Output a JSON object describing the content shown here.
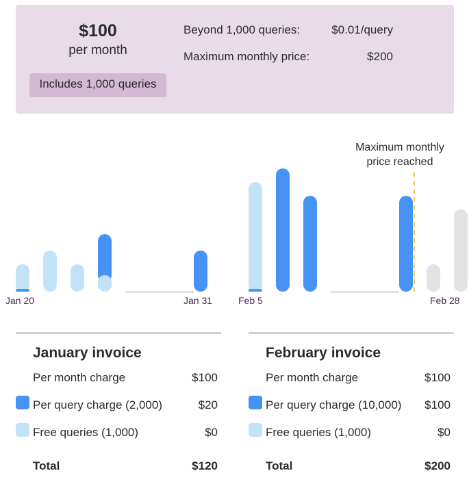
{
  "pricing": {
    "amount": "$100",
    "period": "per month",
    "includes": "Includes 1,000 queries",
    "rows": [
      {
        "label": "Beyond 1,000 queries:",
        "value": "$0.01/query"
      },
      {
        "label": "Maximum monthly price:",
        "value": "$200"
      }
    ]
  },
  "chart_data": {
    "type": "bar",
    "ticks": [
      "Jan 20",
      "Jan 31",
      "Feb 5",
      "Feb 28"
    ],
    "annotation": [
      "Maximum monthly",
      "price reached"
    ],
    "colors": {
      "paid": "#4793f5",
      "free": "#c2e3f7",
      "capped": "#e3e3e3",
      "marker": "#f2c94c",
      "baseline": "#e3e3e3"
    },
    "bars": [
      {
        "slot": 0,
        "free": 40,
        "paid": 4
      },
      {
        "slot": 2,
        "free": 60,
        "paid": 0
      },
      {
        "slot": 4,
        "free": 40,
        "paid": 0
      },
      {
        "slot": 6,
        "free": 24,
        "paid": 60
      },
      {
        "slot": 13,
        "free": 0,
        "paid": 60
      },
      {
        "slot": 17,
        "free": 160,
        "paid": 4
      },
      {
        "slot": 19,
        "free": 0,
        "paid": 180
      },
      {
        "slot": 21,
        "free": 0,
        "paid": 140
      },
      {
        "slot": 28,
        "free": 0,
        "paid": 140
      },
      {
        "slot": 30,
        "free": 0,
        "paid": 0,
        "capped": 40
      },
      {
        "slot": 32,
        "free": 0,
        "paid": 0,
        "capped": 120
      }
    ],
    "gaps": [
      [
        8,
        12
      ],
      [
        23,
        27
      ]
    ],
    "marker_slot": 29.1
  },
  "invoices": [
    {
      "title": "January invoice",
      "lines": [
        {
          "label": "Per month charge",
          "value": "$100"
        },
        {
          "label": "Per query charge (2,000)",
          "value": "$20"
        },
        {
          "label": "Free queries (1,000)",
          "value": "$0"
        }
      ],
      "total_label": "Total",
      "total_value": "$120"
    },
    {
      "title": "February invoice",
      "lines": [
        {
          "label": "Per month charge",
          "value": "$100"
        },
        {
          "label": "Per query charge (10,000)",
          "value": "$100"
        },
        {
          "label": "Free queries (1,000)",
          "value": "$0"
        }
      ],
      "total_label": "Total",
      "total_value": "$200"
    }
  ]
}
